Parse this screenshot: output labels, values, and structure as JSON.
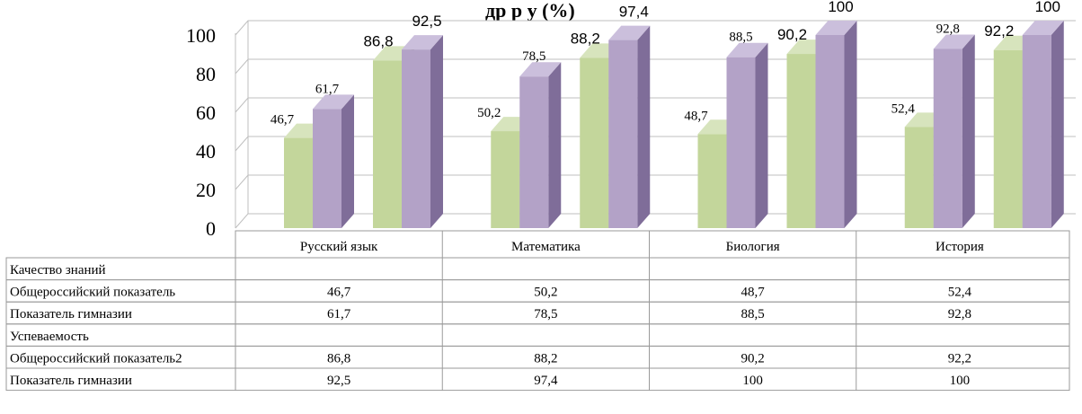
{
  "chart_data": {
    "type": "bar",
    "title_fragment": "др        р  у          (%)",
    "categories": [
      "Русский язык",
      "Математика",
      "Биология",
      "История"
    ],
    "ylim": [
      0,
      100
    ],
    "yticks": [
      "0",
      "20",
      "40",
      "60",
      "80",
      "100"
    ],
    "grid": true,
    "groups": [
      {
        "name": "Качество знаний",
        "series": [
          {
            "name": "Общероссийский показатель",
            "values": [
              46.7,
              50.2,
              48.7,
              52.4
            ],
            "labels": [
              "46,7",
              "50,2",
              "48,7",
              "52,4"
            ]
          },
          {
            "name": "Показатель гимназии",
            "values": [
              61.7,
              78.5,
              88.5,
              92.8
            ],
            "labels": [
              "61,7",
              "78,5",
              "88,5",
              "92,8"
            ]
          }
        ]
      },
      {
        "name": "Успеваемость",
        "series": [
          {
            "name": "Общероссийский показатель2",
            "values": [
              86.8,
              88.2,
              90.2,
              92.2
            ],
            "labels": [
              "86,8",
              "88,2",
              "90,2",
              "92,2"
            ]
          },
          {
            "name": "Показатель гимназии",
            "values": [
              92.5,
              97.4,
              100,
              100
            ],
            "labels": [
              "92,5",
              "97,4",
              "100",
              "100"
            ]
          }
        ]
      }
    ]
  },
  "colors": {
    "green": "#c3d69b",
    "green_side": "#9bb46c",
    "green_top": "#d7e4bd",
    "purple": "#b3a2c7",
    "purple_side": "#7f6d99",
    "purple_top": "#cbbfdc",
    "grid": "#bfbfbf",
    "border": "#9a9a9a"
  }
}
